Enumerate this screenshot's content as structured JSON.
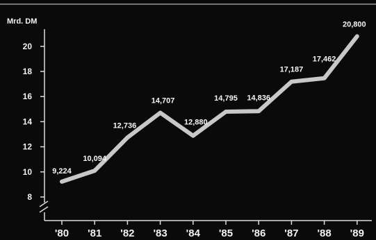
{
  "chart_data": {
    "type": "line",
    "title": "",
    "ylabel": "Mrd. DM",
    "xlabel": "",
    "categories": [
      "'80",
      "'81",
      "'82",
      "'83",
      "'84",
      "'85",
      "'86",
      "'87",
      "'88",
      "'89"
    ],
    "values": [
      9.224,
      10.094,
      12.736,
      14.707,
      12.88,
      14.795,
      14.836,
      17.187,
      17.462,
      20.8
    ],
    "data_labels": [
      "9,224",
      "10,094",
      "12,736",
      "14,707",
      "12,880",
      "14,795",
      "14,836",
      "17,187",
      "17,462",
      "20,800"
    ],
    "yticks": [
      8,
      10,
      12,
      14,
      16,
      18,
      20
    ],
    "ytick_labels": [
      "8",
      "10",
      "12",
      "14",
      "16",
      "18",
      "20"
    ],
    "ylim": [
      8,
      21
    ],
    "axis_break": true,
    "grid": false,
    "colors": {
      "background": "#0a0a0a",
      "line": "#c8c8c8",
      "axis": "#dcdcdc",
      "text": "#f2f2f2"
    }
  }
}
